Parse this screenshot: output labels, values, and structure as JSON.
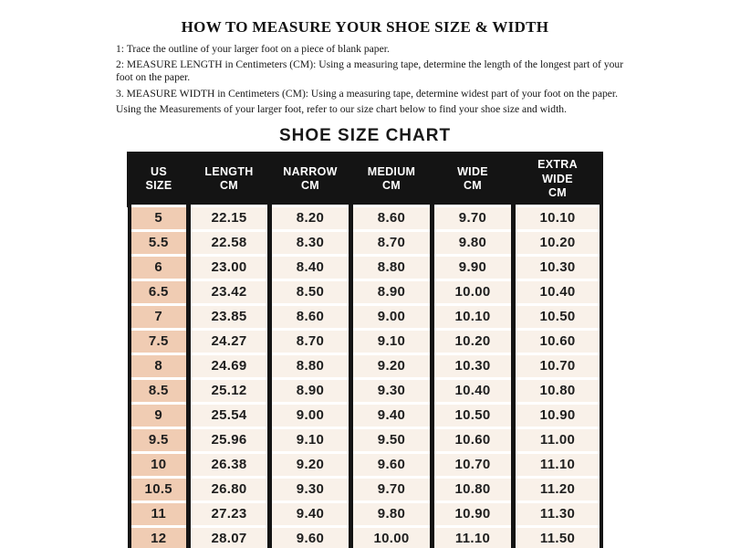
{
  "header": {
    "title": "HOW TO MEASURE YOUR SHOE SIZE & WIDTH"
  },
  "instructions": [
    "1: Trace the outline of your larger foot on a piece of blank paper.",
    "2: MEASURE LENGTH in Centimeters (CM): Using a measuring tape, determine the length of the longest part of your foot on the paper.",
    "3. MEASURE WIDTH in Centimeters (CM): Using a measuring tape, determine widest part of your foot on the paper.",
    "Using the Measurements of your larger foot, refer to our size chart below to find your shoe size and width."
  ],
  "chart_data": {
    "type": "table",
    "title": "SHOE SIZE CHART",
    "columns": [
      {
        "line1": "US",
        "line2": "SIZE"
      },
      {
        "line1": "LENGTH",
        "line2": "CM"
      },
      {
        "line1": "NARROW",
        "line2": "CM"
      },
      {
        "line1": "MEDIUM",
        "line2": "CM"
      },
      {
        "line1": "WIDE",
        "line2": "CM"
      },
      {
        "line1": "EXTRA WIDE",
        "line2": "CM"
      }
    ],
    "rows": [
      [
        "5",
        "22.15",
        "8.20",
        "8.60",
        "9.70",
        "10.10"
      ],
      [
        "5.5",
        "22.58",
        "8.30",
        "8.70",
        "9.80",
        "10.20"
      ],
      [
        "6",
        "23.00",
        "8.40",
        "8.80",
        "9.90",
        "10.30"
      ],
      [
        "6.5",
        "23.42",
        "8.50",
        "8.90",
        "10.00",
        "10.40"
      ],
      [
        "7",
        "23.85",
        "8.60",
        "9.00",
        "10.10",
        "10.50"
      ],
      [
        "7.5",
        "24.27",
        "8.70",
        "9.10",
        "10.20",
        "10.60"
      ],
      [
        "8",
        "24.69",
        "8.80",
        "9.20",
        "10.30",
        "10.70"
      ],
      [
        "8.5",
        "25.12",
        "8.90",
        "9.30",
        "10.40",
        "10.80"
      ],
      [
        "9",
        "25.54",
        "9.00",
        "9.40",
        "10.50",
        "10.90"
      ],
      [
        "9.5",
        "25.96",
        "9.10",
        "9.50",
        "10.60",
        "11.00"
      ],
      [
        "10",
        "26.38",
        "9.20",
        "9.60",
        "10.70",
        "11.10"
      ],
      [
        "10.5",
        "26.80",
        "9.30",
        "9.70",
        "10.80",
        "11.20"
      ],
      [
        "11",
        "27.23",
        "9.40",
        "9.80",
        "10.90",
        "11.30"
      ],
      [
        "12",
        "28.07",
        "9.60",
        "10.00",
        "11.10",
        "11.50"
      ]
    ]
  },
  "colors": {
    "table_header_bg": "#141414",
    "table_header_text": "#ffffff",
    "size_column_bg": "#f0ccb3",
    "cell_bg": "#f9f1e9",
    "row_divider": "#ffffff",
    "border": "#141414",
    "text": "#1c1c1c",
    "page_bg": "#ffffff"
  }
}
